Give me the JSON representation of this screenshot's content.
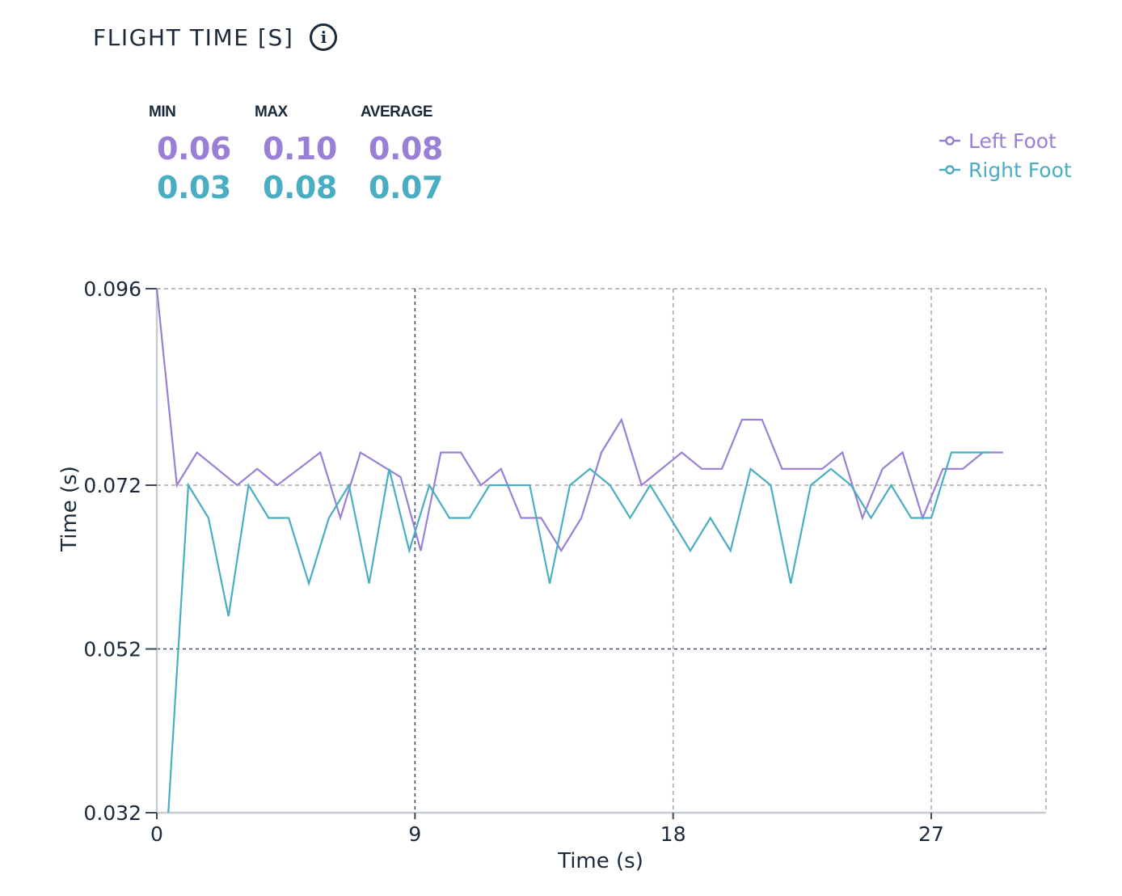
{
  "header": {
    "title": "FLIGHT TIME [S]",
    "info_icon": "info-icon"
  },
  "stats": {
    "labels": {
      "min": "MIN",
      "max": "MAX",
      "average": "AVERAGE"
    },
    "left_foot": {
      "min": "0.06",
      "max": "0.10",
      "average": "0.08"
    },
    "right_foot": {
      "min": "0.03",
      "max": "0.08",
      "average": "0.07"
    }
  },
  "colors": {
    "left_foot": "#9a7fd6",
    "right_foot": "#4aaec2",
    "axis_text": "#1b2a3a",
    "grid_light": "#a7a7a7",
    "grid_dark": "#3a4a68"
  },
  "legend": {
    "items": [
      {
        "label": "Left Foot",
        "color": "#9a7fd6"
      },
      {
        "label": "Right Foot",
        "color": "#4aaec2"
      }
    ]
  },
  "chart_data": {
    "type": "line",
    "title": "",
    "xlabel": "Time (s)",
    "ylabel": "Time (s)",
    "xlim": [
      0,
      31
    ],
    "ylim": [
      0.032,
      0.096
    ],
    "x_ticks": [
      "0",
      "9",
      "18",
      "27"
    ],
    "y_ticks": [
      "0.032",
      "0.052",
      "0.072",
      "0.096"
    ],
    "grid": true,
    "legend_position": "top-right",
    "series": [
      {
        "name": "Left Foot",
        "color": "#9a7fd6",
        "points": [
          [
            0.0,
            0.096
          ],
          [
            0.7,
            0.072
          ],
          [
            1.4,
            0.076
          ],
          [
            2.8,
            0.072
          ],
          [
            3.5,
            0.074
          ],
          [
            4.2,
            0.072
          ],
          [
            5.7,
            0.076
          ],
          [
            6.4,
            0.068
          ],
          [
            7.1,
            0.076
          ],
          [
            8.5,
            0.073
          ],
          [
            9.2,
            0.064
          ],
          [
            9.9,
            0.076
          ],
          [
            10.6,
            0.076
          ],
          [
            11.3,
            0.072
          ],
          [
            12.0,
            0.074
          ],
          [
            12.7,
            0.068
          ],
          [
            13.4,
            0.068
          ],
          [
            14.1,
            0.064
          ],
          [
            14.8,
            0.068
          ],
          [
            15.5,
            0.076
          ],
          [
            16.2,
            0.08
          ],
          [
            16.9,
            0.072
          ],
          [
            18.3,
            0.076
          ],
          [
            19.0,
            0.074
          ],
          [
            19.7,
            0.074
          ],
          [
            20.4,
            0.08
          ],
          [
            21.1,
            0.08
          ],
          [
            21.8,
            0.074
          ],
          [
            22.5,
            0.074
          ],
          [
            23.2,
            0.074
          ],
          [
            23.9,
            0.076
          ],
          [
            24.6,
            0.068
          ],
          [
            25.3,
            0.074
          ],
          [
            26.0,
            0.076
          ],
          [
            26.7,
            0.068
          ],
          [
            27.4,
            0.074
          ],
          [
            28.1,
            0.074
          ],
          [
            28.8,
            0.076
          ],
          [
            29.5,
            0.076
          ]
        ]
      },
      {
        "name": "Right Foot",
        "color": "#4aaec2",
        "points": [
          [
            0.4,
            0.032
          ],
          [
            1.1,
            0.072
          ],
          [
            1.8,
            0.068
          ],
          [
            2.5,
            0.056
          ],
          [
            3.2,
            0.072
          ],
          [
            3.9,
            0.068
          ],
          [
            4.6,
            0.068
          ],
          [
            5.3,
            0.06
          ],
          [
            6.0,
            0.068
          ],
          [
            6.7,
            0.072
          ],
          [
            7.4,
            0.06
          ],
          [
            8.1,
            0.074
          ],
          [
            8.8,
            0.064
          ],
          [
            9.5,
            0.072
          ],
          [
            10.2,
            0.068
          ],
          [
            10.9,
            0.068
          ],
          [
            11.6,
            0.072
          ],
          [
            12.3,
            0.072
          ],
          [
            13.0,
            0.072
          ],
          [
            13.7,
            0.06
          ],
          [
            14.4,
            0.072
          ],
          [
            15.1,
            0.074
          ],
          [
            15.8,
            0.072
          ],
          [
            16.5,
            0.068
          ],
          [
            17.2,
            0.072
          ],
          [
            17.9,
            0.068
          ],
          [
            18.6,
            0.064
          ],
          [
            19.3,
            0.068
          ],
          [
            20.0,
            0.064
          ],
          [
            20.7,
            0.074
          ],
          [
            21.4,
            0.072
          ],
          [
            22.1,
            0.06
          ],
          [
            22.8,
            0.072
          ],
          [
            23.5,
            0.074
          ],
          [
            24.2,
            0.072
          ],
          [
            24.9,
            0.068
          ],
          [
            25.6,
            0.072
          ],
          [
            26.3,
            0.068
          ],
          [
            27.0,
            0.068
          ],
          [
            27.7,
            0.076
          ],
          [
            28.4,
            0.076
          ],
          [
            29.1,
            0.076
          ]
        ]
      }
    ]
  }
}
